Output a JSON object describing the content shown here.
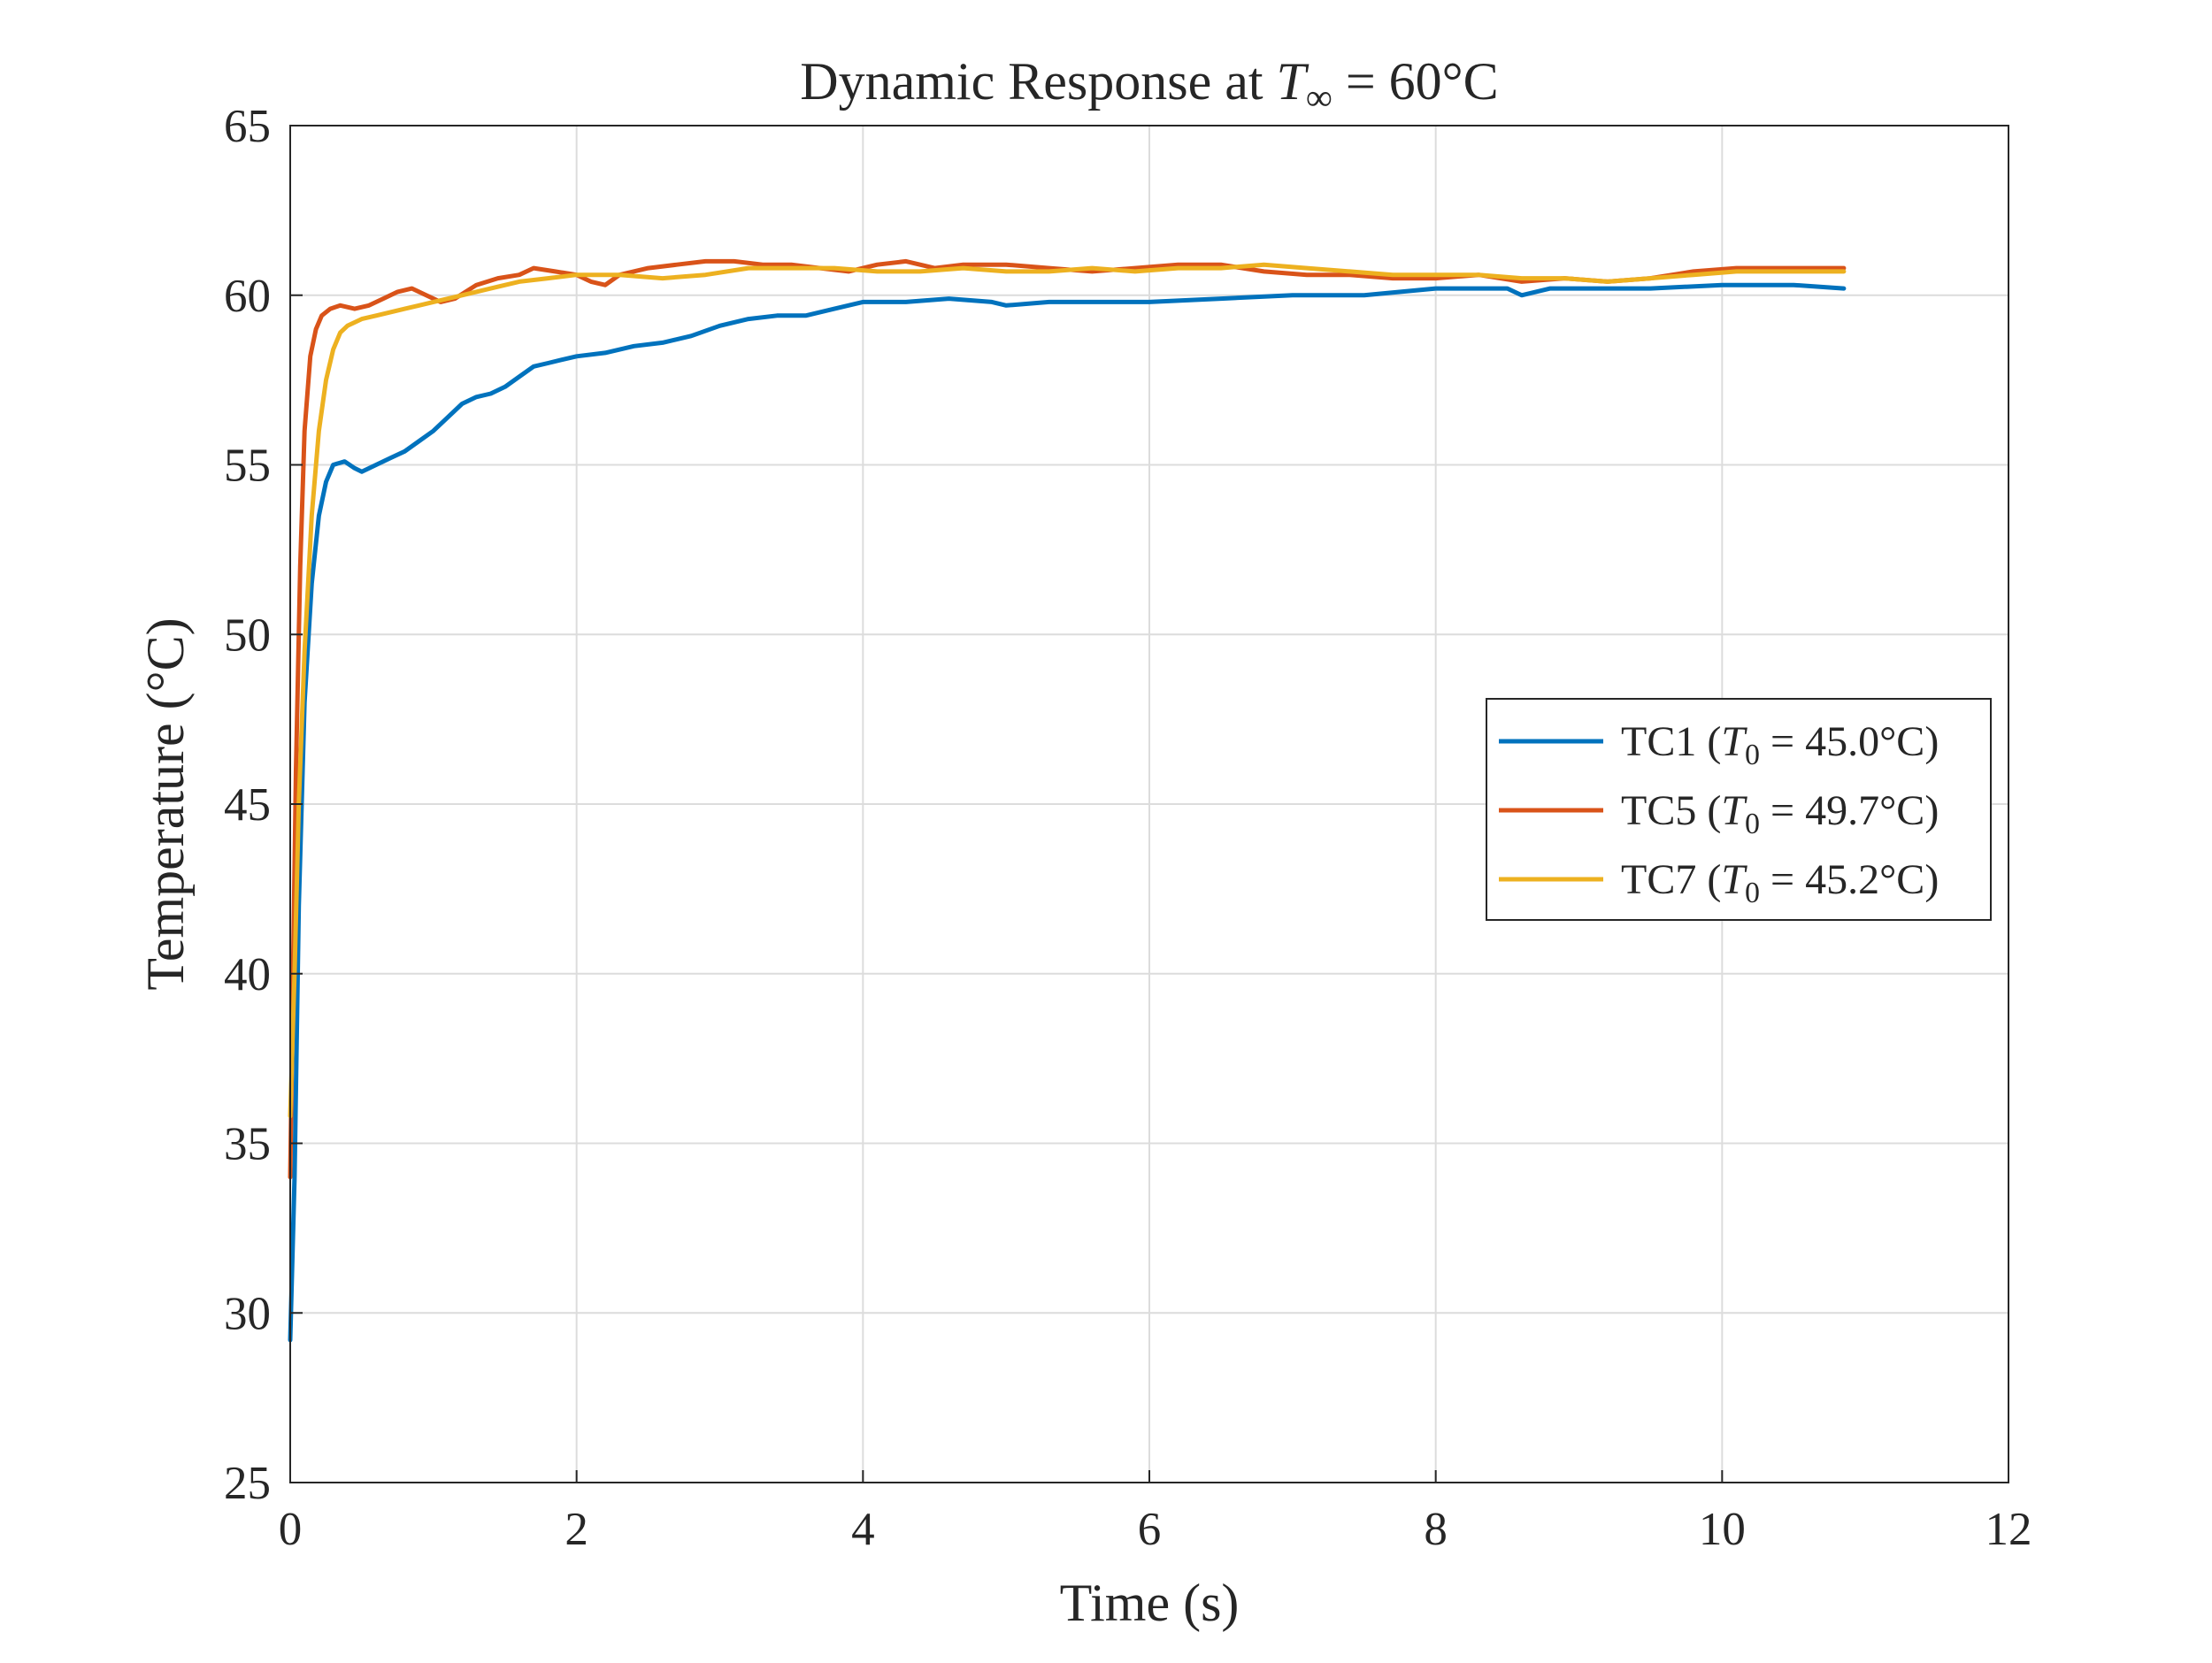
{
  "chart_data": {
    "type": "line",
    "title_parts": {
      "prefix": "Dynamic Response at ",
      "var": "T",
      "sub": "∞",
      "suffix": " = 60°C"
    },
    "xlabel": "Time (s)",
    "ylabel": "Temperature (°C)",
    "xlim": [
      0,
      12
    ],
    "ylim": [
      25,
      65
    ],
    "xticks": [
      0,
      2,
      4,
      6,
      8,
      10,
      12
    ],
    "yticks": [
      25,
      30,
      35,
      40,
      45,
      50,
      55,
      60,
      65
    ],
    "grid": true,
    "legend_position": "right-middle",
    "series": [
      {
        "name": "TC1",
        "legend_parts": {
          "prefix": "TC1 (",
          "var": "T",
          "sub": "0",
          "suffix": " = 45.0°C)"
        },
        "color": "#0072BD",
        "points": [
          [
            0,
            29.2
          ],
          [
            0.03,
            34
          ],
          [
            0.06,
            42
          ],
          [
            0.1,
            48
          ],
          [
            0.15,
            51.5
          ],
          [
            0.2,
            53.5
          ],
          [
            0.25,
            54.5
          ],
          [
            0.3,
            55.0
          ],
          [
            0.38,
            55.1
          ],
          [
            0.45,
            54.9
          ],
          [
            0.5,
            54.8
          ],
          [
            0.6,
            55.0
          ],
          [
            0.7,
            55.2
          ],
          [
            0.8,
            55.4
          ],
          [
            0.9,
            55.7
          ],
          [
            1.0,
            56.0
          ],
          [
            1.1,
            56.4
          ],
          [
            1.2,
            56.8
          ],
          [
            1.3,
            57.0
          ],
          [
            1.4,
            57.1
          ],
          [
            1.5,
            57.3
          ],
          [
            1.6,
            57.6
          ],
          [
            1.7,
            57.9
          ],
          [
            1.8,
            58.0
          ],
          [
            1.9,
            58.1
          ],
          [
            2.0,
            58.2
          ],
          [
            2.2,
            58.3
          ],
          [
            2.4,
            58.5
          ],
          [
            2.6,
            58.6
          ],
          [
            2.8,
            58.8
          ],
          [
            3.0,
            59.1
          ],
          [
            3.2,
            59.3
          ],
          [
            3.4,
            59.4
          ],
          [
            3.6,
            59.4
          ],
          [
            3.8,
            59.6
          ],
          [
            4.0,
            59.8
          ],
          [
            4.3,
            59.8
          ],
          [
            4.6,
            59.9
          ],
          [
            4.9,
            59.8
          ],
          [
            5.0,
            59.7
          ],
          [
            5.3,
            59.8
          ],
          [
            5.6,
            59.8
          ],
          [
            6.0,
            59.8
          ],
          [
            6.5,
            59.9
          ],
          [
            7.0,
            60.0
          ],
          [
            7.5,
            60.0
          ],
          [
            8.0,
            60.2
          ],
          [
            8.5,
            60.2
          ],
          [
            8.6,
            60.0
          ],
          [
            8.8,
            60.2
          ],
          [
            9.0,
            60.2
          ],
          [
            9.5,
            60.2
          ],
          [
            10.0,
            60.3
          ],
          [
            10.5,
            60.3
          ],
          [
            10.85,
            60.2
          ]
        ]
      },
      {
        "name": "TC5",
        "legend_parts": {
          "prefix": "TC5 (",
          "var": "T",
          "sub": "0",
          "suffix": " = 49.7°C)"
        },
        "color": "#D95319",
        "points": [
          [
            0,
            34.0
          ],
          [
            0.02,
            40
          ],
          [
            0.04,
            46
          ],
          [
            0.07,
            52
          ],
          [
            0.1,
            56
          ],
          [
            0.14,
            58.2
          ],
          [
            0.18,
            59.0
          ],
          [
            0.22,
            59.4
          ],
          [
            0.28,
            59.6
          ],
          [
            0.35,
            59.7
          ],
          [
            0.45,
            59.6
          ],
          [
            0.55,
            59.7
          ],
          [
            0.65,
            59.9
          ],
          [
            0.75,
            60.1
          ],
          [
            0.85,
            60.2
          ],
          [
            0.95,
            60.0
          ],
          [
            1.05,
            59.8
          ],
          [
            1.15,
            59.9
          ],
          [
            1.3,
            60.3
          ],
          [
            1.45,
            60.5
          ],
          [
            1.6,
            60.6
          ],
          [
            1.7,
            60.8
          ],
          [
            1.85,
            60.7
          ],
          [
            2.0,
            60.6
          ],
          [
            2.1,
            60.4
          ],
          [
            2.2,
            60.3
          ],
          [
            2.3,
            60.6
          ],
          [
            2.5,
            60.8
          ],
          [
            2.7,
            60.9
          ],
          [
            2.9,
            61.0
          ],
          [
            3.1,
            61.0
          ],
          [
            3.3,
            60.9
          ],
          [
            3.5,
            60.9
          ],
          [
            3.7,
            60.8
          ],
          [
            3.9,
            60.7
          ],
          [
            4.1,
            60.9
          ],
          [
            4.3,
            61.0
          ],
          [
            4.5,
            60.8
          ],
          [
            4.7,
            60.9
          ],
          [
            5.0,
            60.9
          ],
          [
            5.3,
            60.8
          ],
          [
            5.6,
            60.7
          ],
          [
            5.9,
            60.8
          ],
          [
            6.2,
            60.9
          ],
          [
            6.5,
            60.9
          ],
          [
            6.8,
            60.7
          ],
          [
            7.1,
            60.6
          ],
          [
            7.4,
            60.6
          ],
          [
            7.7,
            60.5
          ],
          [
            8.0,
            60.5
          ],
          [
            8.3,
            60.6
          ],
          [
            8.6,
            60.4
          ],
          [
            8.9,
            60.5
          ],
          [
            9.2,
            60.4
          ],
          [
            9.5,
            60.5
          ],
          [
            9.8,
            60.7
          ],
          [
            10.1,
            60.8
          ],
          [
            10.4,
            60.8
          ],
          [
            10.85,
            60.8
          ]
        ]
      },
      {
        "name": "TC7",
        "legend_parts": {
          "prefix": "TC7 (",
          "var": "T",
          "sub": "0",
          "suffix": " = 45.2°C)"
        },
        "color": "#EDB120",
        "points": [
          [
            0,
            35.8
          ],
          [
            0.03,
            40
          ],
          [
            0.06,
            45
          ],
          [
            0.1,
            49.5
          ],
          [
            0.15,
            53.5
          ],
          [
            0.2,
            56
          ],
          [
            0.25,
            57.5
          ],
          [
            0.3,
            58.4
          ],
          [
            0.35,
            58.9
          ],
          [
            0.4,
            59.1
          ],
          [
            0.5,
            59.3
          ],
          [
            0.6,
            59.4
          ],
          [
            0.7,
            59.5
          ],
          [
            0.8,
            59.6
          ],
          [
            0.9,
            59.7
          ],
          [
            1.0,
            59.8
          ],
          [
            1.2,
            60.0
          ],
          [
            1.4,
            60.2
          ],
          [
            1.6,
            60.4
          ],
          [
            1.8,
            60.5
          ],
          [
            2.0,
            60.6
          ],
          [
            2.3,
            60.6
          ],
          [
            2.6,
            60.5
          ],
          [
            2.9,
            60.6
          ],
          [
            3.2,
            60.8
          ],
          [
            3.5,
            60.8
          ],
          [
            3.8,
            60.8
          ],
          [
            4.1,
            60.7
          ],
          [
            4.4,
            60.7
          ],
          [
            4.7,
            60.8
          ],
          [
            5.0,
            60.7
          ],
          [
            5.3,
            60.7
          ],
          [
            5.6,
            60.8
          ],
          [
            5.9,
            60.7
          ],
          [
            6.2,
            60.8
          ],
          [
            6.5,
            60.8
          ],
          [
            6.8,
            60.9
          ],
          [
            7.1,
            60.8
          ],
          [
            7.4,
            60.7
          ],
          [
            7.7,
            60.6
          ],
          [
            8.0,
            60.6
          ],
          [
            8.3,
            60.6
          ],
          [
            8.6,
            60.5
          ],
          [
            8.9,
            60.5
          ],
          [
            9.2,
            60.4
          ],
          [
            9.5,
            60.5
          ],
          [
            9.8,
            60.6
          ],
          [
            10.1,
            60.7
          ],
          [
            10.4,
            60.7
          ],
          [
            10.85,
            60.7
          ]
        ]
      }
    ]
  }
}
